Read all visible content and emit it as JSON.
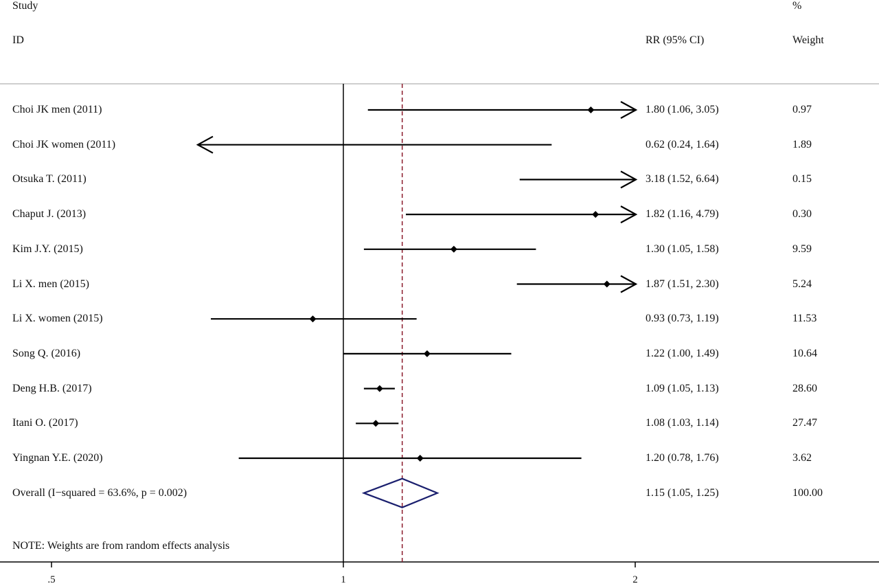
{
  "header": {
    "study_line1": "Study",
    "study_line2": "ID",
    "estimate_label": "RR (95% CI)",
    "weight_line1": "%",
    "weight_line2": "Weight"
  },
  "note": "NOTE: Weights are from random effects analysis",
  "colors": {
    "study_marks": "#000000",
    "overall_diamond": "#1a1f6e",
    "pooled_line": "#8b1a2b",
    "top_rule": "#bdbdbd"
  },
  "chart_data": {
    "type": "forest",
    "x_scale": "log",
    "x_ticks": [
      0.5,
      1,
      2
    ],
    "x_tick_labels": [
      ".5",
      "1",
      "2"
    ],
    "null_line": 1,
    "pooled_estimate": 1.15,
    "studies": [
      {
        "label": "Choi JK men (2011)",
        "rr": 1.8,
        "lo": 1.06,
        "hi": 3.05,
        "ci_text": "1.80 (1.06, 3.05)",
        "weight": "0.97"
      },
      {
        "label": "Choi JK women (2011)",
        "rr": 0.62,
        "lo": 0.24,
        "hi": 1.64,
        "ci_text": "0.62 (0.24, 1.64)",
        "weight": "1.89"
      },
      {
        "label": "Otsuka T. (2011)",
        "rr": 3.18,
        "lo": 1.52,
        "hi": 6.64,
        "ci_text": "3.18 (1.52, 6.64)",
        "weight": "0.15"
      },
      {
        "label": "Chaput J. (2013)",
        "rr": 1.82,
        "lo": 1.16,
        "hi": 4.79,
        "ci_text": "1.82 (1.16, 4.79)",
        "weight": "0.30"
      },
      {
        "label": "Kim J.Y. (2015)",
        "rr": 1.3,
        "lo": 1.05,
        "hi": 1.58,
        "ci_text": "1.30 (1.05, 1.58)",
        "weight": "9.59"
      },
      {
        "label": "Li X. men (2015)",
        "rr": 1.87,
        "lo": 1.51,
        "hi": 2.3,
        "ci_text": "1.87 (1.51, 2.30)",
        "weight": "5.24"
      },
      {
        "label": "Li X. women (2015)",
        "rr": 0.93,
        "lo": 0.73,
        "hi": 1.19,
        "ci_text": "0.93 (0.73, 1.19)",
        "weight": "11.53"
      },
      {
        "label": "Song Q. (2016)",
        "rr": 1.22,
        "lo": 1.0,
        "hi": 1.49,
        "ci_text": "1.22 (1.00, 1.49)",
        "weight": "10.64"
      },
      {
        "label": "Deng H.B. (2017)",
        "rr": 1.09,
        "lo": 1.05,
        "hi": 1.13,
        "ci_text": "1.09 (1.05, 1.13)",
        "weight": "28.60"
      },
      {
        "label": "Itani O. (2017)",
        "rr": 1.08,
        "lo": 1.03,
        "hi": 1.14,
        "ci_text": "1.08 (1.03, 1.14)",
        "weight": "27.47"
      },
      {
        "label": "Yingnan Y.E. (2020)",
        "rr": 1.2,
        "lo": 0.78,
        "hi": 1.76,
        "ci_text": "1.20 (0.78, 1.76)",
        "weight": "3.62"
      }
    ],
    "overall": {
      "label": "Overall  (I−squared = 63.6%, p = 0.002)",
      "rr": 1.15,
      "lo": 1.05,
      "hi": 1.25,
      "ci_text": "1.15 (1.05, 1.25)",
      "weight": "100.00"
    }
  }
}
